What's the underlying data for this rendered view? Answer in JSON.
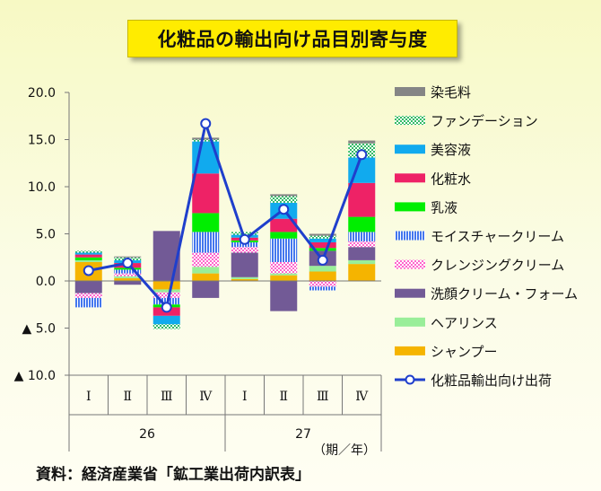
{
  "title": "化粧品の輸出向け品目別寄与度",
  "source": "資料：経済産業省「鉱工業出荷内訳表」",
  "chart_data": {
    "type": "bar",
    "stacked": true,
    "ylim": [
      -10,
      20
    ],
    "yticks": [
      {
        "value": 20,
        "label": "20.0"
      },
      {
        "value": 15,
        "label": "15.0"
      },
      {
        "value": 10,
        "label": "10.0"
      },
      {
        "value": 5,
        "label": "5.0"
      },
      {
        "value": 0,
        "label": "0.0"
      },
      {
        "value": -5,
        "label": "▲ 5.0"
      },
      {
        "value": -10,
        "label": "▲ 10.0"
      }
    ],
    "categories": [
      "Ⅰ",
      "Ⅱ",
      "Ⅲ",
      "Ⅳ",
      "Ⅰ",
      "Ⅱ",
      "Ⅲ",
      "Ⅳ"
    ],
    "years": [
      {
        "label": "26",
        "span": [
          0,
          3
        ]
      },
      {
        "label": "27",
        "span": [
          4,
          7
        ]
      }
    ],
    "unit_label": "（期／年）",
    "series": [
      {
        "name": "シャンプー",
        "color": "#f5b400",
        "pattern": "solid",
        "values": [
          2.0,
          0.3,
          -0.9,
          0.8,
          0.2,
          0.6,
          1.0,
          1.8
        ]
      },
      {
        "name": "ヘアリンス",
        "color": "#99ee99",
        "pattern": "solid",
        "values": [
          0.2,
          0.2,
          -0.3,
          0.7,
          0.2,
          0.2,
          0.6,
          0.4
        ]
      },
      {
        "name": "洗顔クリーム・フォーム",
        "color": "#725a96",
        "pattern": "solid",
        "values": [
          -1.3,
          -0.4,
          5.3,
          -1.8,
          2.6,
          -3.2,
          1.6,
          1.4
        ]
      },
      {
        "name": "クレンジングクリーム",
        "color": "#ff66cc",
        "pattern": "check",
        "values": [
          -0.5,
          0.3,
          -0.6,
          1.5,
          0.6,
          1.2,
          -0.6,
          0.6
        ]
      },
      {
        "name": "モイスチャークリーム",
        "color": "#4477ee",
        "pattern": "vstripe",
        "values": [
          -1.0,
          0.4,
          -0.7,
          2.2,
          0.5,
          2.5,
          -0.4,
          1.0
        ]
      },
      {
        "name": "乳液",
        "color": "#00ee00",
        "pattern": "solid",
        "values": [
          0.3,
          0.2,
          -0.3,
          2.0,
          0.2,
          0.7,
          0.3,
          1.6
        ]
      },
      {
        "name": "化粧水",
        "color": "#ee2266",
        "pattern": "solid",
        "values": [
          0.3,
          0.5,
          -0.9,
          4.2,
          0.3,
          1.4,
          0.6,
          3.6
        ]
      },
      {
        "name": "美容液",
        "color": "#11aaee",
        "pattern": "solid",
        "values": [
          0.2,
          0.3,
          -0.9,
          3.4,
          0.3,
          1.7,
          0.4,
          2.7
        ]
      },
      {
        "name": "ファンデーション",
        "color": "#33bb66",
        "pattern": "check",
        "values": [
          0.2,
          0.3,
          -0.5,
          0.2,
          0.3,
          0.7,
          0.3,
          1.5
        ]
      },
      {
        "name": "染毛料",
        "color": "#858585",
        "pattern": "solid",
        "values": [
          0.0,
          0.1,
          0.0,
          0.2,
          0.0,
          0.2,
          0.2,
          0.3
        ]
      }
    ],
    "line": {
      "name": "化粧品輸出向け出荷",
      "color": "#1f3fcc",
      "values": [
        1.1,
        1.9,
        -2.8,
        16.7,
        4.4,
        7.6,
        2.2,
        13.4
      ]
    },
    "legend_order": [
      "染毛料",
      "ファンデーション",
      "美容液",
      "化粧水",
      "乳液",
      "モイスチャークリーム",
      "クレンジングクリーム",
      "洗顔クリーム・フォーム",
      "ヘアリンス",
      "シャンプー",
      "化粧品輸出向け出荷"
    ],
    "legend_position": "right",
    "grid": false
  }
}
